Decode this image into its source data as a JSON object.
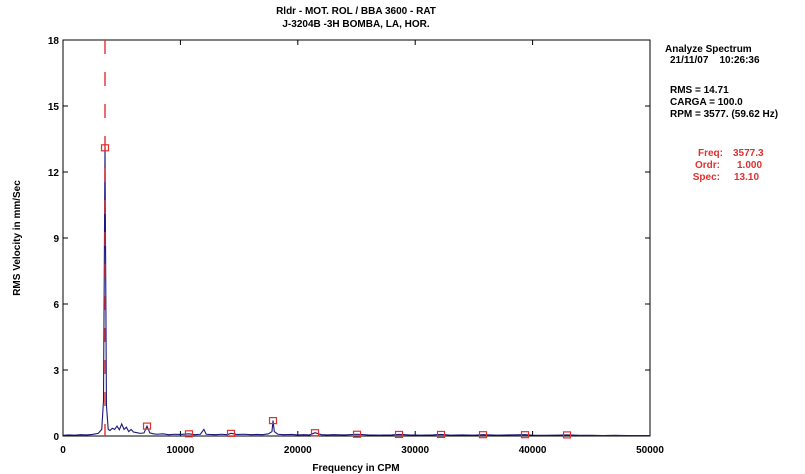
{
  "chart_data": {
    "type": "line",
    "title_lines": [
      "Rldr -  MOT. ROL / BBA 3600 - RAT",
      "J-3204B   -3H     BOMBA, LA, HOR."
    ],
    "xlabel": "Frequency in CPM",
    "ylabel": "RMS Velocity in mm/Sec",
    "xlim": [
      0,
      50000
    ],
    "ylim": [
      0,
      18
    ],
    "xticks": [
      0,
      10000,
      20000,
      30000,
      40000,
      50000
    ],
    "xtick_labels": [
      "0",
      "10000",
      "20000",
      "30000",
      "40000",
      "50000"
    ],
    "yticks": [
      0,
      3,
      6,
      9,
      12,
      15,
      18
    ],
    "ytick_labels": [
      "0",
      "3",
      "6",
      "9",
      "12",
      "15",
      "18"
    ],
    "grid": false,
    "series": [
      {
        "color": "#1a1a7a",
        "x": [
          0,
          500,
          1000,
          1500,
          2000,
          2500,
          3000,
          3300,
          3450,
          3577.3,
          3700,
          3850,
          4000,
          4200,
          4400,
          4600,
          4800,
          5000,
          5200,
          5400,
          5600,
          5800,
          6000,
          6300,
          6600,
          6900,
          7155,
          7400,
          7700,
          8000,
          8500,
          9000,
          9500,
          10000,
          10732,
          11200,
          11700,
          12000,
          12200,
          12500,
          13000,
          13500,
          14000,
          14310,
          14800,
          15500,
          16000,
          16500,
          17000,
          17500,
          17800,
          17889,
          18000,
          18300,
          18800,
          19500,
          20000,
          20500,
          21000,
          21467,
          22000,
          22500,
          23000,
          24000,
          25044,
          26000,
          27000,
          28000,
          28622,
          29500,
          30500,
          31500,
          32199,
          33000,
          34000,
          35000,
          35776,
          37000,
          38000,
          39354,
          40000,
          41000,
          42000,
          42931,
          44000,
          45000,
          46000,
          47000,
          48000,
          49000,
          50000
        ],
        "y": [
          0.03,
          0.05,
          0.04,
          0.06,
          0.05,
          0.07,
          0.12,
          0.3,
          1.6,
          13.1,
          1.4,
          0.3,
          0.25,
          0.35,
          0.3,
          0.45,
          0.28,
          0.55,
          0.3,
          0.4,
          0.2,
          0.3,
          0.18,
          0.15,
          0.12,
          0.14,
          0.45,
          0.14,
          0.1,
          0.08,
          0.1,
          0.06,
          0.08,
          0.07,
          0.1,
          0.06,
          0.08,
          0.3,
          0.08,
          0.07,
          0.06,
          0.08,
          0.06,
          0.12,
          0.07,
          0.08,
          0.06,
          0.07,
          0.06,
          0.1,
          0.2,
          0.7,
          0.2,
          0.08,
          0.06,
          0.07,
          0.05,
          0.06,
          0.05,
          0.15,
          0.06,
          0.05,
          0.06,
          0.05,
          0.08,
          0.05,
          0.04,
          0.05,
          0.07,
          0.05,
          0.04,
          0.05,
          0.07,
          0.04,
          0.05,
          0.04,
          0.06,
          0.04,
          0.05,
          0.06,
          0.04,
          0.03,
          0.04,
          0.05,
          0.03,
          0.03,
          0.02,
          0.03,
          0.02,
          0.02,
          0.02
        ]
      }
    ],
    "harmonic_markers": {
      "color": "#e03030",
      "points": [
        {
          "x": 3577.3,
          "y": 13.1
        },
        {
          "x": 7155,
          "y": 0.45
        },
        {
          "x": 10732,
          "y": 0.1
        },
        {
          "x": 14310,
          "y": 0.12
        },
        {
          "x": 17889,
          "y": 0.7
        },
        {
          "x": 21467,
          "y": 0.15
        },
        {
          "x": 25044,
          "y": 0.08
        },
        {
          "x": 28622,
          "y": 0.07
        },
        {
          "x": 32199,
          "y": 0.07
        },
        {
          "x": 35776,
          "y": 0.06
        },
        {
          "x": 39354,
          "y": 0.06
        },
        {
          "x": 42931,
          "y": 0.05
        }
      ]
    },
    "cursor": {
      "x": 3577.3,
      "color": "#e03030"
    }
  },
  "info": {
    "title": "Analyze Spectrum",
    "datetime": "21/11/07    10:26:36",
    "rms": "RMS =  14.71",
    "carga": "CARGA = 100.0",
    "rpm": "RPM = 3577. (59.62 Hz)"
  },
  "cursor_readout": {
    "freq_label": "Freq:",
    "freq_value": "3577.3",
    "ordr_label": "Ordr:",
    "ordr_value": "1.000",
    "spec_label": "Spec:",
    "spec_value": "13.10"
  }
}
